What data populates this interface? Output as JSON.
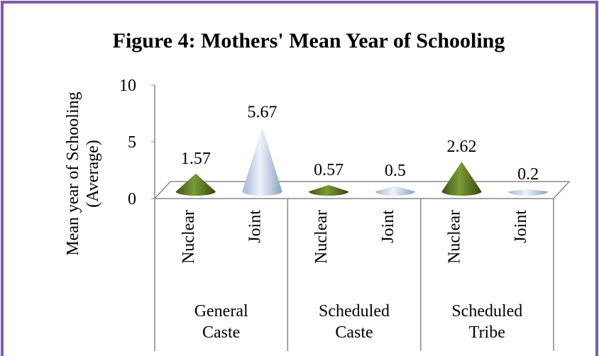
{
  "chart_data": {
    "type": "cone",
    "title": "Figure 4: Mothers' Mean Year of Schooling",
    "y_label": "Mean year of Schooling (Average)",
    "groups": [
      "General Caste",
      "Scheduled Caste",
      "Scheduled Tribe"
    ],
    "categories": [
      "Nuclear",
      "Joint",
      "Nuclear",
      "Joint",
      "Nuclear",
      "Joint"
    ],
    "values": [
      1.57,
      5.67,
      0.57,
      0.5,
      2.62,
      0.2
    ],
    "value_labels": [
      "1.57",
      "5.67",
      "0.57",
      "0.5",
      "2.62",
      "0.2"
    ],
    "colors": {
      "Nuclear": "#4f6b1a",
      "Joint": "#a9c0dc"
    },
    "ylim": [
      0,
      10
    ],
    "yticks": [
      0,
      5,
      10
    ]
  }
}
